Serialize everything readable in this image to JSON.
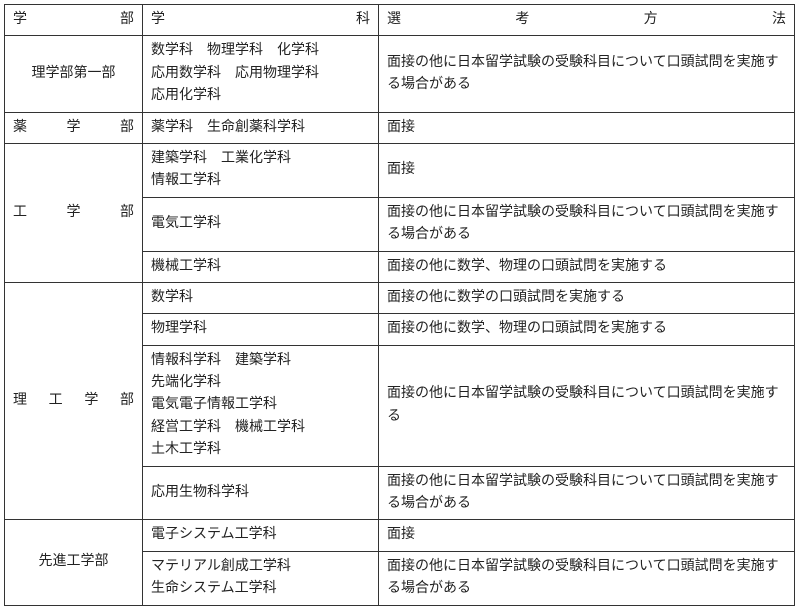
{
  "headers": {
    "faculty": "学部",
    "department": "学科",
    "method": "選考方法"
  },
  "rows": [
    {
      "faculty": "理学部第一部",
      "faculty_justify": false,
      "departments": [
        "数学科",
        "物理学科",
        "化学科",
        "応用数学科",
        "応用物理学科",
        "応用化学科"
      ],
      "method": "面接の他に日本留学試験の受験科目について口頭試問を実施する場合がある"
    },
    {
      "faculty": "薬学部",
      "faculty_justify": true,
      "departments": [
        "薬学科",
        "生命創薬科学科"
      ],
      "method": "面接"
    },
    {
      "faculty": "工学部",
      "faculty_justify": true,
      "sub": [
        {
          "departments": [
            "建築学科",
            "工業化学科",
            "情報工学科"
          ],
          "method": "面接"
        },
        {
          "departments": [
            "電気工学科"
          ],
          "method": "面接の他に日本留学試験の受験科目について口頭試問を実施する場合がある"
        },
        {
          "departments": [
            "機械工学科"
          ],
          "method": "面接の他に数学、物理の口頭試問を実施する"
        }
      ]
    },
    {
      "faculty": "理工学部",
      "faculty_justify": true,
      "sub": [
        {
          "departments": [
            "数学科"
          ],
          "method": "面接の他に数学の口頭試問を実施する"
        },
        {
          "departments": [
            "物理学科"
          ],
          "method": "面接の他に数学、物理の口頭試問を実施する"
        },
        {
          "departments": [
            "情報科学科",
            "建築学科",
            "先端化学科",
            "電気電子情報工学科",
            "経営工学科",
            "機械工学科",
            "土木工学科"
          ],
          "method": "面接の他に日本留学試験の受験科目について口頭試問を実施する"
        },
        {
          "departments": [
            "応用生物科学科"
          ],
          "method": "面接の他に日本留学試験の受験科目について口頭試問を実施する場合がある"
        }
      ]
    },
    {
      "faculty": "先進工学部",
      "faculty_justify": false,
      "sub": [
        {
          "departments": [
            "電子システム工学科"
          ],
          "method": "面接"
        },
        {
          "departments": [
            "マテリアル創成工学科",
            "生命システム工学科"
          ],
          "method": "面接の他に日本留学試験の受験科目について口頭試問を実施する場合がある"
        }
      ]
    }
  ]
}
